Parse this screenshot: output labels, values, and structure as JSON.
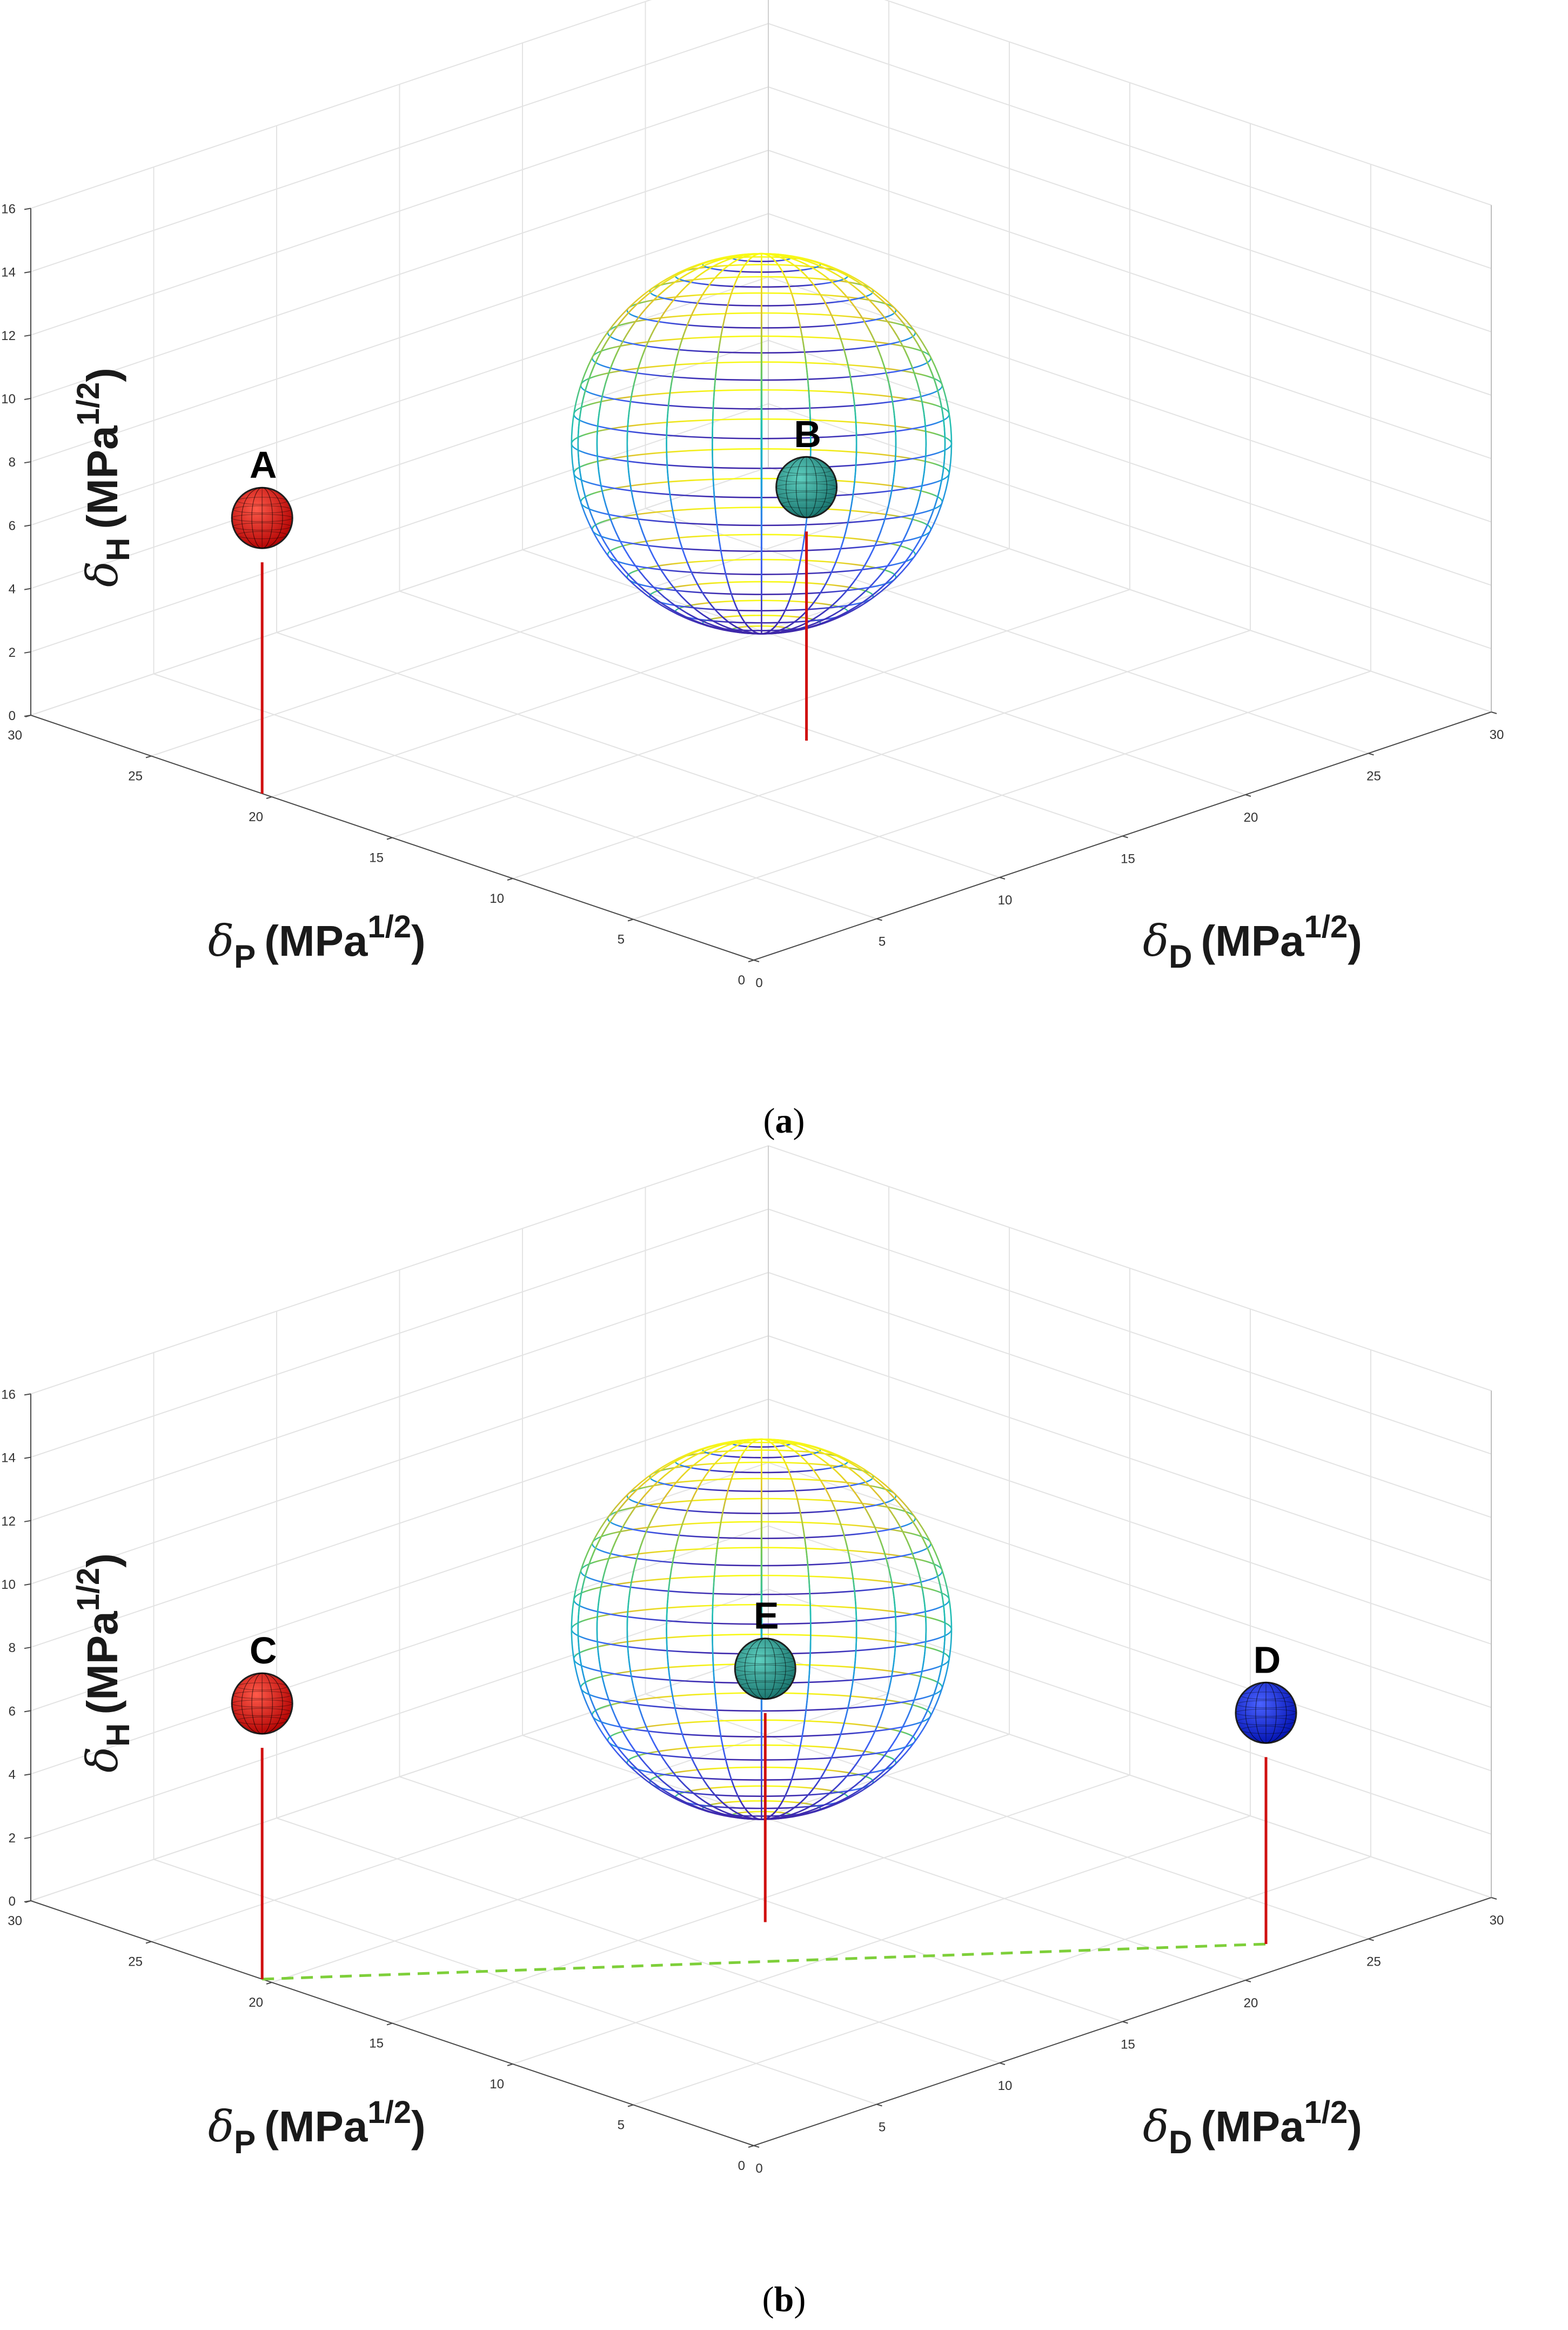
{
  "figure": {
    "panels": [
      {
        "caption": {
          "open": "(",
          "letter": "a",
          "close": ")"
        }
      },
      {
        "caption": {
          "open": "(",
          "letter": "b",
          "close": ")"
        }
      }
    ]
  },
  "chart_data": [
    {
      "type": "scatter3d",
      "panel": "a",
      "axes": {
        "x": {
          "symbol": "δ",
          "subscript": "D",
          "unit_base": "(MPa",
          "unit_exp": "1/2",
          "unit_close": ")",
          "range": [
            0,
            30
          ],
          "ticks": [
            "0",
            "5",
            "10",
            "15",
            "20",
            "25",
            "30"
          ]
        },
        "y": {
          "symbol": "δ",
          "subscript": "P",
          "unit_base": "(MPa",
          "unit_exp": "1/2",
          "unit_close": ")",
          "range": [
            0,
            30
          ],
          "ticks": [
            "0",
            "5",
            "10",
            "15",
            "20",
            "25",
            "30"
          ]
        },
        "z": {
          "symbol": "δ",
          "subscript": "H",
          "unit_base": "(MPa",
          "unit_exp": "1/2",
          "unit_close": ")",
          "range": [
            0,
            16
          ],
          "ticks": [
            "0",
            "2",
            "4",
            "6",
            "8",
            "10",
            "12",
            "14",
            "16"
          ]
        }
      },
      "grid": true,
      "sphere": {
        "center": [
          16,
          16,
          8
        ],
        "radius": 6,
        "colormap": "parula",
        "style": "wireframe"
      },
      "points": [
        {
          "label": "A",
          "x": 0,
          "y": 20.4,
          "z": 8.7,
          "color": "#e01010",
          "stem": true
        },
        {
          "label": "B",
          "x": 14.3,
          "y": 12.4,
          "z": 8.0,
          "color": "#20a898",
          "stem": true
        }
      ],
      "connector": null
    },
    {
      "type": "scatter3d",
      "panel": "b",
      "axes": {
        "x": {
          "symbol": "δ",
          "subscript": "D",
          "unit_base": "(MPa",
          "unit_exp": "1/2",
          "unit_close": ")",
          "range": [
            0,
            30
          ],
          "ticks": [
            "0",
            "5",
            "10",
            "15",
            "20",
            "25",
            "30"
          ]
        },
        "y": {
          "symbol": "δ",
          "subscript": "P",
          "unit_base": "(MPa",
          "unit_exp": "1/2",
          "unit_close": ")",
          "range": [
            0,
            30
          ],
          "ticks": [
            "0",
            "5",
            "10",
            "15",
            "20",
            "25",
            "30"
          ]
        },
        "z": {
          "symbol": "δ",
          "subscript": "H",
          "unit_base": "(MPa",
          "unit_exp": "1/2",
          "unit_close": ")",
          "range": [
            0,
            16
          ],
          "ticks": [
            "0",
            "2",
            "4",
            "6",
            "8",
            "10",
            "12",
            "14",
            "16"
          ]
        }
      },
      "grid": true,
      "sphere": {
        "center": [
          16,
          16,
          8
        ],
        "radius": 6,
        "colormap": "parula",
        "style": "wireframe"
      },
      "points": [
        {
          "label": "C",
          "x": 0,
          "y": 20.4,
          "z": 8.7,
          "color": "#e01010",
          "stem": true
        },
        {
          "label": "E",
          "x": 13.7,
          "y": 13.5,
          "z": 8.0,
          "color": "#20a898",
          "stem": true
        },
        {
          "label": "D",
          "x": 22.6,
          "y": 1.8,
          "z": 7.3,
          "color": "#1020e8",
          "stem": true
        }
      ],
      "connector": {
        "from": "C",
        "to": "D",
        "style": "dashed",
        "color": "#7ecf3a"
      }
    }
  ]
}
